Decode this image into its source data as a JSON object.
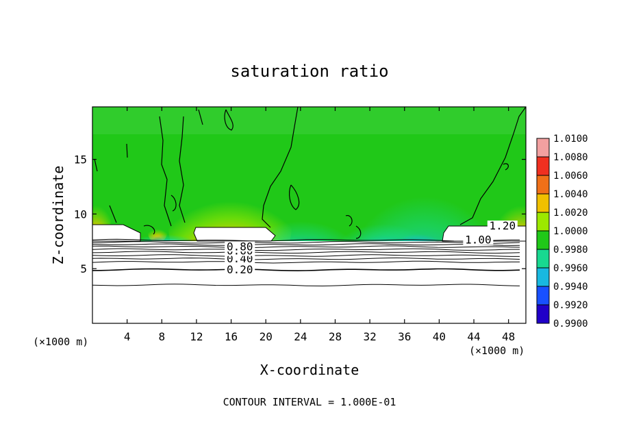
{
  "chart_data": {
    "type": "heatmap",
    "title": "saturation ratio",
    "xlabel": "X-coordinate",
    "ylabel": "Z-coordinate",
    "x_unit": "(×1000 m)",
    "xlim": [
      0,
      50
    ],
    "ylim": [
      0,
      19.8
    ],
    "x_ticks": [
      4,
      8,
      12,
      16,
      20,
      24,
      28,
      32,
      36,
      40,
      44,
      48
    ],
    "y_ticks": [
      5,
      10,
      15
    ],
    "footer": "CONTOUR INTERVAL = 1.000E-01",
    "colorbar": {
      "levels": [
        "1.0100",
        "1.0080",
        "1.0060",
        "1.0040",
        "1.0020",
        "1.0000",
        "0.9980",
        "0.9960",
        "0.9940",
        "0.9920",
        "0.9900"
      ],
      "colors": [
        "#f2a0a0",
        "#f03020",
        "#f07018",
        "#f0c000",
        "#9ce800",
        "#20c818",
        "#18d890",
        "#18b8e0",
        "#1850ff",
        "#2000c8",
        "#6000a0"
      ]
    },
    "contour_labels": [
      {
        "text": "0.20",
        "x": 17,
        "y": 4.9
      },
      {
        "text": "0.40",
        "x": 17,
        "y": 5.9
      },
      {
        "text": "0.60",
        "x": 17,
        "y": 6.6
      },
      {
        "text": "0.80",
        "x": 17,
        "y": 7.0
      },
      {
        "text": "1.00",
        "x": 44.5,
        "y": 7.6
      },
      {
        "text": "1.20",
        "x": 47.3,
        "y": 8.9
      }
    ],
    "below_cloud_contours_z": [
      3.5,
      4.9,
      5.6,
      5.9,
      6.2,
      6.5,
      6.75,
      7.0,
      7.2,
      7.4,
      7.6
    ]
  }
}
